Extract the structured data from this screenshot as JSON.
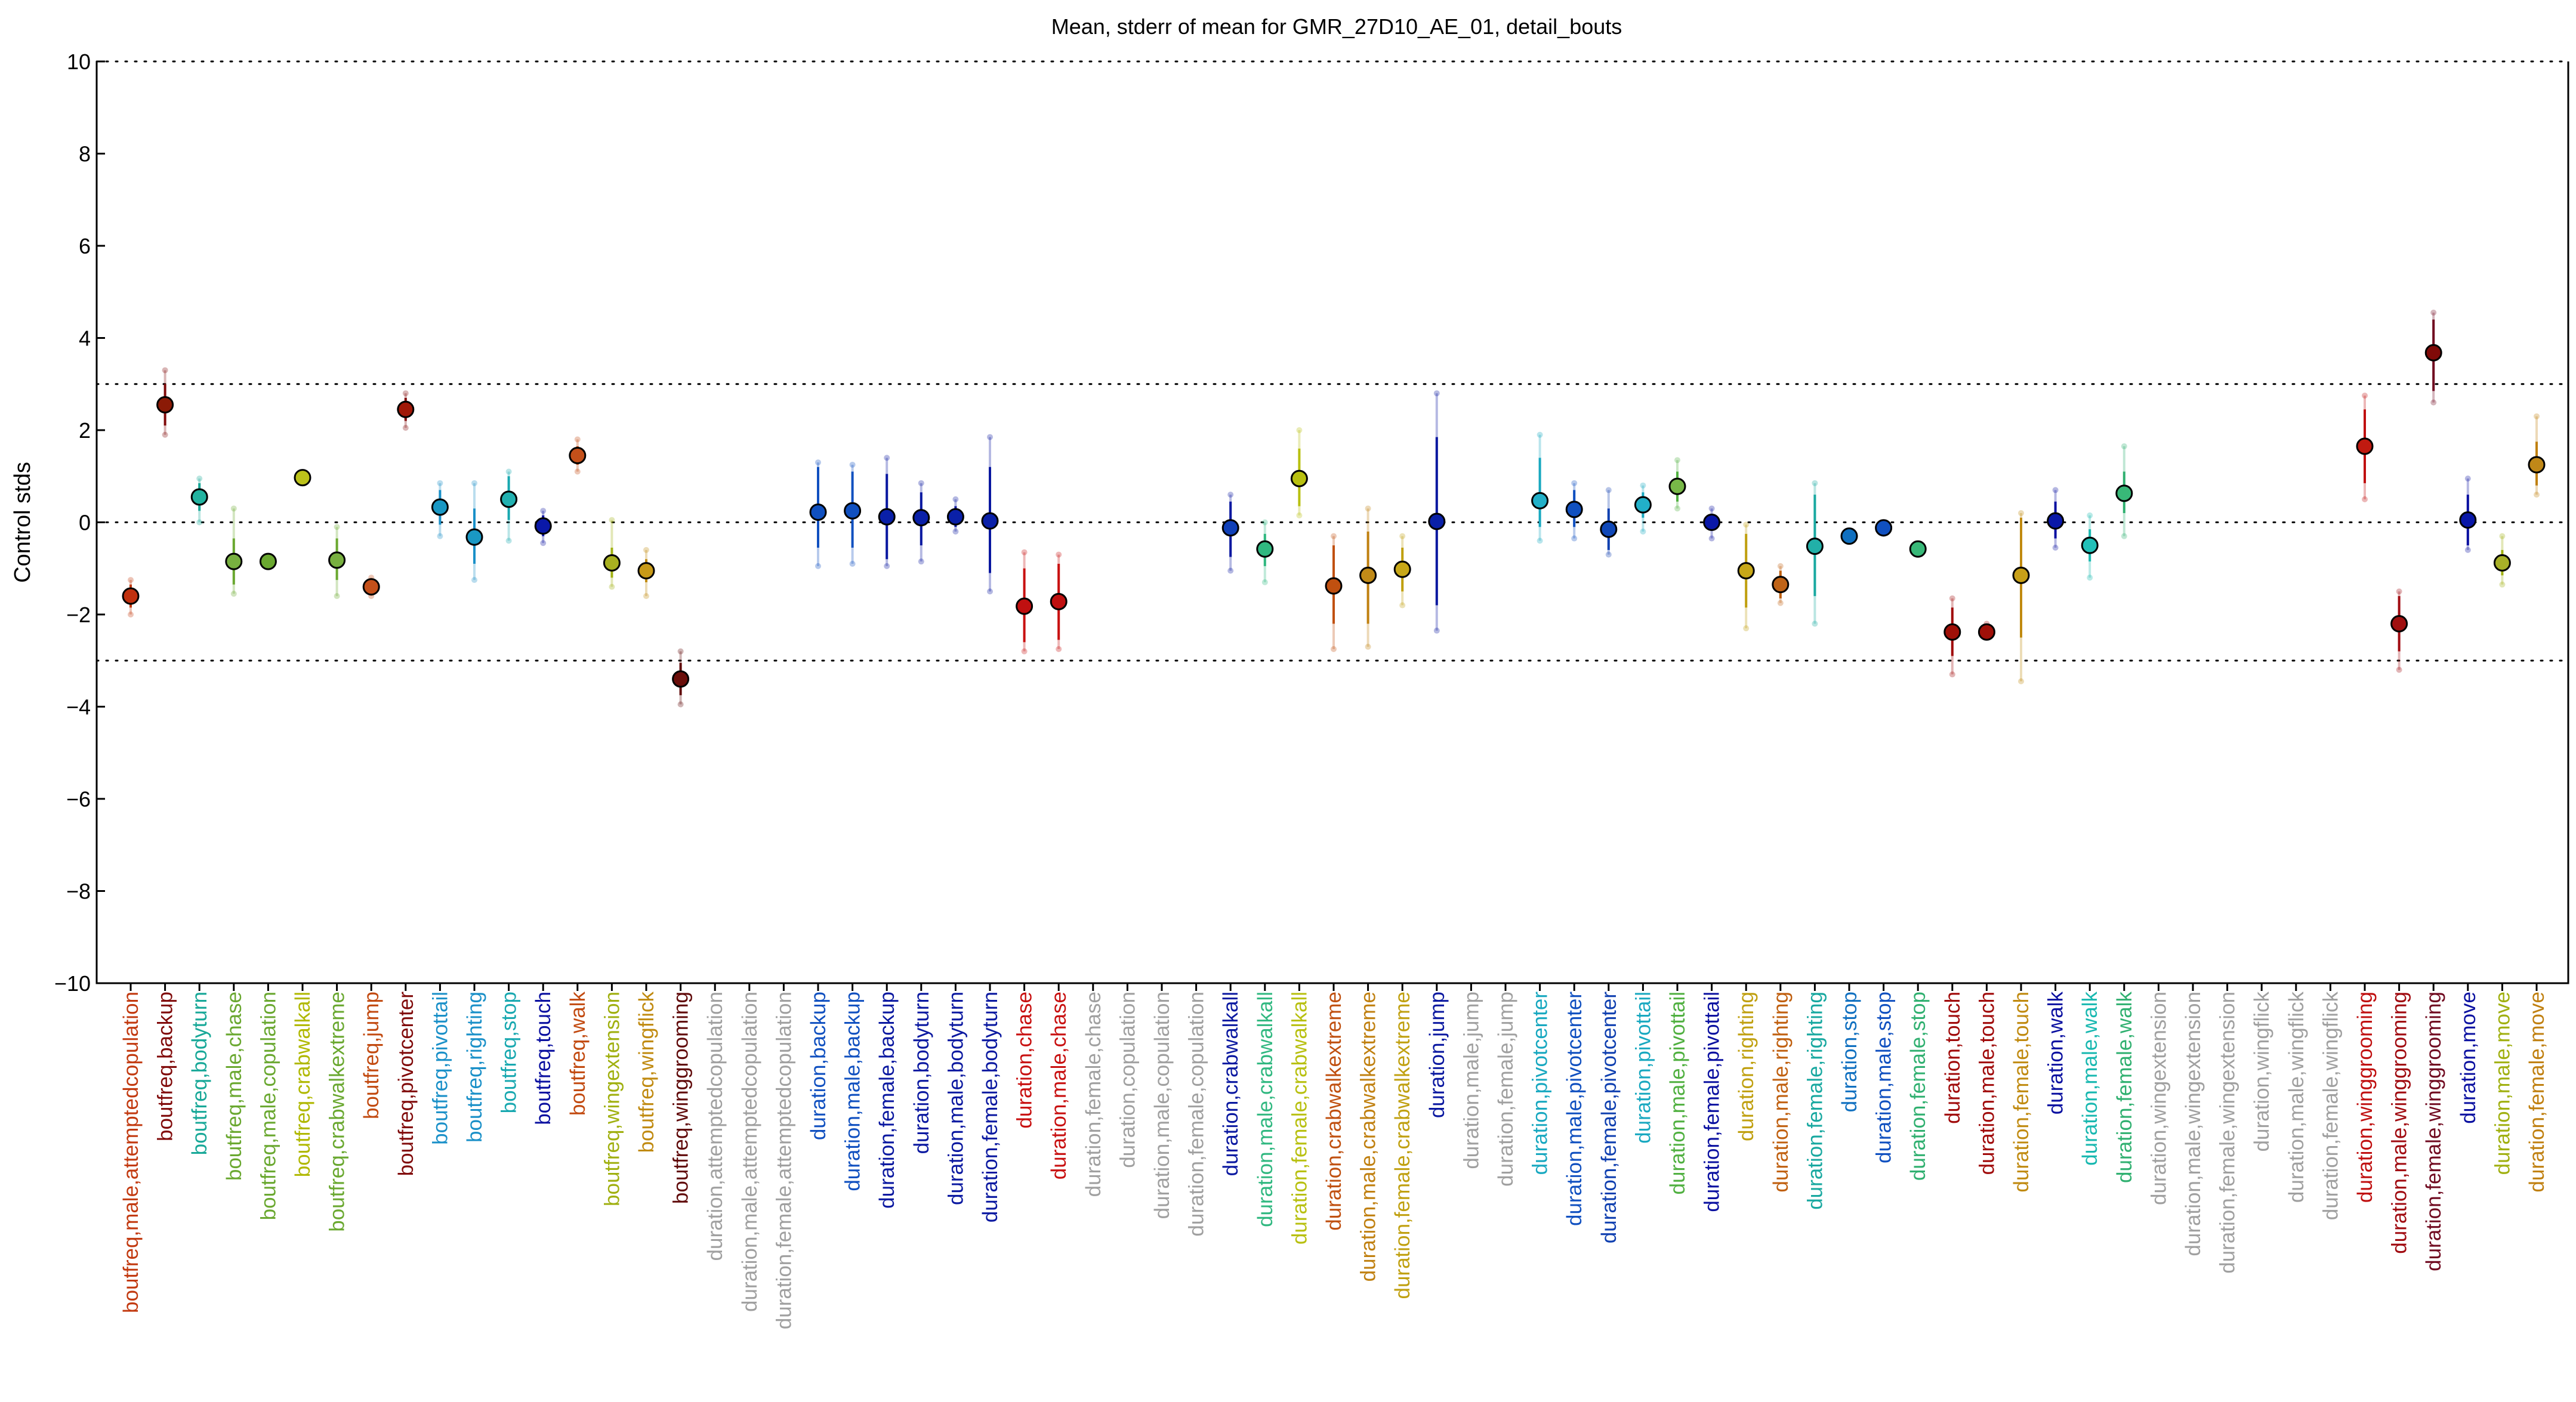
{
  "chart_data": {
    "type": "scatter",
    "title": "Mean, stderr of mean for GMR_27D10_AE_01, detail_bouts",
    "ylabel": "Control stds",
    "xlabel": "",
    "ylim": [
      -10,
      10
    ],
    "yticks": [
      -10,
      -8,
      -6,
      -4,
      -2,
      0,
      2,
      4,
      6,
      8,
      10
    ],
    "reference_lines": [
      -10,
      -3,
      0,
      3,
      10
    ],
    "grid": false,
    "categories": [
      {
        "label": "boutfreq,male,attemptedcopulation",
        "mean": -1.6,
        "se_low": -1.85,
        "se_high": -1.35,
        "min": -2.0,
        "max": -1.25,
        "color": "#c23a10",
        "point": "#c0300e"
      },
      {
        "label": "boutfreq,backup",
        "mean": 2.55,
        "se_low": 2.1,
        "se_high": 3.0,
        "min": 1.9,
        "max": 3.3,
        "color": "#800a0a",
        "point": "#8b1a06"
      },
      {
        "label": "boutfreq,bodyturn",
        "mean": 0.55,
        "se_low": 0.25,
        "se_high": 0.85,
        "min": 0.0,
        "max": 0.95,
        "color": "#18a898",
        "point": "#22b3a0"
      },
      {
        "label": "boutfreq,male,chase",
        "mean": -0.85,
        "se_low": -1.35,
        "se_high": -0.35,
        "min": -1.55,
        "max": 0.3,
        "color": "#6aa830",
        "point": "#78b040"
      },
      {
        "label": "boutfreq,male,copulation",
        "mean": -0.85,
        "se_low": -0.85,
        "se_high": -0.85,
        "min": -0.85,
        "max": -0.85,
        "color": "#6aa830",
        "point": "#6aa830"
      },
      {
        "label": "boutfreq,crabwalkall",
        "mean": 0.97,
        "se_low": 0.97,
        "se_high": 0.97,
        "min": 0.97,
        "max": 0.97,
        "color": "#b0b800",
        "point": "#bcc21a"
      },
      {
        "label": "boutfreq,crabwalkextreme",
        "mean": -0.82,
        "se_low": -1.25,
        "se_high": -0.35,
        "min": -1.6,
        "max": -0.1,
        "color": "#6aa830",
        "point": "#78b040"
      },
      {
        "label": "boutfreq,jump",
        "mean": -1.4,
        "se_low": -1.52,
        "se_high": -1.28,
        "min": -1.6,
        "max": -1.2,
        "color": "#c24a10",
        "point": "#c4501a"
      },
      {
        "label": "boutfreq,pivotcenter",
        "mean": 2.45,
        "se_low": 2.2,
        "se_high": 2.7,
        "min": 2.05,
        "max": 2.8,
        "color": "#800a0a",
        "point": "#a01808"
      },
      {
        "label": "boutfreq,pivottail",
        "mean": 0.33,
        "se_low": -0.05,
        "se_high": 0.7,
        "min": -0.3,
        "max": 0.85,
        "color": "#1a90c8",
        "point": "#1a98c4"
      },
      {
        "label": "boutfreq,righting",
        "mean": -0.32,
        "se_low": -0.9,
        "se_high": 0.3,
        "min": -1.25,
        "max": 0.85,
        "color": "#1a90c8",
        "point": "#1a98c4"
      },
      {
        "label": "boutfreq,stop",
        "mean": 0.5,
        "se_low": 0.05,
        "se_high": 1.0,
        "min": -0.4,
        "max": 1.1,
        "color": "#18a8b0",
        "point": "#22b0b0"
      },
      {
        "label": "boutfreq,touch",
        "mean": -0.08,
        "se_low": -0.3,
        "se_high": 0.15,
        "min": -0.45,
        "max": 0.25,
        "color": "#0a10a0",
        "point": "#0a18a8"
      },
      {
        "label": "boutfreq,walk",
        "mean": 1.45,
        "se_low": 1.25,
        "se_high": 1.65,
        "min": 1.1,
        "max": 1.8,
        "color": "#c24a10",
        "point": "#c4501a"
      },
      {
        "label": "boutfreq,wingextension",
        "mean": -0.88,
        "se_low": -1.2,
        "se_high": -0.55,
        "min": -1.4,
        "max": 0.05,
        "color": "#a0b010",
        "point": "#a8b020"
      },
      {
        "label": "boutfreq,wingflick",
        "mean": -1.05,
        "se_low": -1.3,
        "se_high": -0.8,
        "min": -1.6,
        "max": -0.6,
        "color": "#c08a10",
        "point": "#c89a18"
      },
      {
        "label": "boutfreq,winggrooming",
        "mean": -3.4,
        "se_low": -3.75,
        "se_high": -3.05,
        "min": -3.95,
        "max": -2.8,
        "color": "#600a0a",
        "point": "#6a0e0a"
      },
      {
        "label": "duration,attemptedcopulation",
        "mean": null,
        "color": "#a0a0a0"
      },
      {
        "label": "duration,male,attemptedcopulation",
        "mean": null,
        "color": "#a0a0a0"
      },
      {
        "label": "duration,female,attemptedcopulation",
        "mean": null,
        "color": "#a0a0a0"
      },
      {
        "label": "duration,backup",
        "mean": 0.22,
        "se_low": -0.55,
        "se_high": 1.2,
        "min": -0.95,
        "max": 1.3,
        "color": "#1050c0",
        "point": "#1050c0"
      },
      {
        "label": "duration,male,backup",
        "mean": 0.25,
        "se_low": -0.55,
        "se_high": 1.1,
        "min": -0.9,
        "max": 1.25,
        "color": "#1050c0",
        "point": "#1050c0"
      },
      {
        "label": "duration,female,backup",
        "mean": 0.12,
        "se_low": -0.8,
        "se_high": 1.05,
        "min": -0.95,
        "max": 1.4,
        "color": "#0a18a0",
        "point": "#0a20a8"
      },
      {
        "label": "duration,bodyturn",
        "mean": 0.1,
        "se_low": -0.5,
        "se_high": 0.65,
        "min": -0.85,
        "max": 0.85,
        "color": "#0a18a0",
        "point": "#0a20a8"
      },
      {
        "label": "duration,male,bodyturn",
        "mean": 0.12,
        "se_low": -0.1,
        "se_high": 0.35,
        "min": -0.2,
        "max": 0.5,
        "color": "#0a18a0",
        "point": "#0a20a8"
      },
      {
        "label": "duration,female,bodyturn",
        "mean": 0.03,
        "se_low": -1.1,
        "se_high": 1.2,
        "min": -1.5,
        "max": 1.85,
        "color": "#0a18a0",
        "point": "#0a20a8"
      },
      {
        "label": "duration,chase",
        "mean": -1.82,
        "se_low": -2.6,
        "se_high": -1.0,
        "min": -2.8,
        "max": -0.65,
        "color": "#c81010",
        "point": "#c01010"
      },
      {
        "label": "duration,male,chase",
        "mean": -1.72,
        "se_low": -2.55,
        "se_high": -0.9,
        "min": -2.75,
        "max": -0.7,
        "color": "#c81010",
        "point": "#c01010"
      },
      {
        "label": "duration,female,chase",
        "mean": null,
        "color": "#a0a0a0"
      },
      {
        "label": "duration,copulation",
        "mean": null,
        "color": "#a0a0a0"
      },
      {
        "label": "duration,male,copulation",
        "mean": null,
        "color": "#a0a0a0"
      },
      {
        "label": "duration,female,copulation",
        "mean": null,
        "color": "#a0a0a0"
      },
      {
        "label": "duration,crabwalkall",
        "mean": -0.12,
        "se_low": -0.75,
        "se_high": 0.45,
        "min": -1.05,
        "max": 0.6,
        "color": "#0a18a0",
        "point": "#1040b8"
      },
      {
        "label": "duration,male,crabwalkall",
        "mean": -0.58,
        "se_low": -0.95,
        "se_high": -0.25,
        "min": -1.3,
        "max": 0.0,
        "color": "#30b880",
        "point": "#30b880"
      },
      {
        "label": "duration,female,crabwalkall",
        "mean": 0.95,
        "se_low": 0.35,
        "se_high": 1.6,
        "min": 0.15,
        "max": 2.0,
        "color": "#b8c010",
        "point": "#b8c010"
      },
      {
        "label": "duration,crabwalkextreme",
        "mean": -1.38,
        "se_low": -2.2,
        "se_high": -0.5,
        "min": -2.75,
        "max": -0.3,
        "color": "#c05010",
        "point": "#c05010"
      },
      {
        "label": "duration,male,crabwalkextreme",
        "mean": -1.15,
        "se_low": -2.2,
        "se_high": -0.2,
        "min": -2.7,
        "max": 0.3,
        "color": "#c08010",
        "point": "#c08a18"
      },
      {
        "label": "duration,female,crabwalkextreme",
        "mean": -1.02,
        "se_low": -1.5,
        "se_high": -0.55,
        "min": -1.8,
        "max": -0.3,
        "color": "#c0a010",
        "point": "#c8a818"
      },
      {
        "label": "duration,jump",
        "mean": 0.02,
        "se_low": -1.8,
        "se_high": 1.85,
        "min": -2.35,
        "max": 2.8,
        "color": "#0a18a0",
        "point": "#0a20a8"
      },
      {
        "label": "duration,male,jump",
        "mean": null,
        "color": "#a0a0a0"
      },
      {
        "label": "duration,female,jump",
        "mean": null,
        "color": "#a0a0a0"
      },
      {
        "label": "duration,pivotcenter",
        "mean": 0.47,
        "se_low": -0.1,
        "se_high": 1.4,
        "min": -0.4,
        "max": 1.9,
        "color": "#18a8c0",
        "point": "#22b0c8"
      },
      {
        "label": "duration,male,pivotcenter",
        "mean": 0.28,
        "se_low": -0.1,
        "se_high": 0.7,
        "min": -0.35,
        "max": 0.85,
        "color": "#1050c0",
        "point": "#1050c0"
      },
      {
        "label": "duration,female,pivotcenter",
        "mean": -0.15,
        "se_low": -0.6,
        "se_high": 0.3,
        "min": -0.7,
        "max": 0.7,
        "color": "#1040b0",
        "point": "#1048b8"
      },
      {
        "label": "duration,pivottail",
        "mean": 0.38,
        "se_low": 0.1,
        "se_high": 0.65,
        "min": -0.2,
        "max": 0.8,
        "color": "#18a8c0",
        "point": "#22b0c8"
      },
      {
        "label": "duration,male,pivottail",
        "mean": 0.78,
        "se_low": 0.45,
        "se_high": 1.1,
        "min": 0.3,
        "max": 1.35,
        "color": "#50b040",
        "point": "#78b848"
      },
      {
        "label": "duration,female,pivottail",
        "mean": 0.0,
        "se_low": -0.15,
        "se_high": 0.15,
        "min": -0.35,
        "max": 0.3,
        "color": "#0a10a0",
        "point": "#0a18a8"
      },
      {
        "label": "duration,righting",
        "mean": -1.05,
        "se_low": -1.85,
        "se_high": -0.25,
        "min": -2.3,
        "max": -0.05,
        "color": "#c0a010",
        "point": "#c8a818"
      },
      {
        "label": "duration,male,righting",
        "mean": -1.35,
        "se_low": -1.65,
        "se_high": -1.05,
        "min": -1.75,
        "max": -0.95,
        "color": "#c06010",
        "point": "#c06418"
      },
      {
        "label": "duration,female,righting",
        "mean": -0.52,
        "se_low": -1.6,
        "se_high": 0.6,
        "min": -2.2,
        "max": 0.85,
        "color": "#18a8a0",
        "point": "#22b0a8"
      },
      {
        "label": "duration,stop",
        "mean": -0.3,
        "se_low": -0.3,
        "se_high": -0.3,
        "min": -0.3,
        "max": -0.3,
        "color": "#1070c0",
        "point": "#1070c0"
      },
      {
        "label": "duration,male,stop",
        "mean": -0.12,
        "se_low": -0.2,
        "se_high": -0.05,
        "min": -0.25,
        "max": 0.0,
        "color": "#1050c0",
        "point": "#1050c0"
      },
      {
        "label": "duration,female,stop",
        "mean": -0.58,
        "se_low": -0.58,
        "se_high": -0.58,
        "min": -0.58,
        "max": -0.58,
        "color": "#30b070",
        "point": "#38b878"
      },
      {
        "label": "duration,touch",
        "mean": -2.38,
        "se_low": -2.9,
        "se_high": -1.85,
        "min": -3.3,
        "max": -1.65,
        "color": "#a00a0a",
        "point": "#a01008"
      },
      {
        "label": "duration,male,touch",
        "mean": -2.38,
        "se_low": -2.45,
        "se_high": -2.3,
        "min": -2.5,
        "max": -2.2,
        "color": "#a00a0a",
        "point": "#a01008"
      },
      {
        "label": "duration,female,touch",
        "mean": -1.15,
        "se_low": -2.5,
        "se_high": 0.1,
        "min": -3.45,
        "max": 0.2,
        "color": "#c08a10",
        "point": "#c8a018"
      },
      {
        "label": "duration,walk",
        "mean": 0.03,
        "se_low": -0.35,
        "se_high": 0.45,
        "min": -0.55,
        "max": 0.7,
        "color": "#0a10a0",
        "point": "#0a18a8"
      },
      {
        "label": "duration,male,walk",
        "mean": -0.5,
        "se_low": -0.85,
        "se_high": -0.15,
        "min": -1.2,
        "max": 0.15,
        "color": "#18b8b0",
        "point": "#22c0b8"
      },
      {
        "label": "duration,female,walk",
        "mean": 0.63,
        "se_low": 0.2,
        "se_high": 1.1,
        "min": -0.3,
        "max": 1.65,
        "color": "#30b070",
        "point": "#38b878"
      },
      {
        "label": "duration,wingextension",
        "mean": null,
        "color": "#a0a0a0"
      },
      {
        "label": "duration,male,wingextension",
        "mean": null,
        "color": "#a0a0a0"
      },
      {
        "label": "duration,female,wingextension",
        "mean": null,
        "color": "#a0a0a0"
      },
      {
        "label": "duration,wingflick",
        "mean": null,
        "color": "#a0a0a0"
      },
      {
        "label": "duration,male,wingflick",
        "mean": null,
        "color": "#a0a0a0"
      },
      {
        "label": "duration,female,wingflick",
        "mean": null,
        "color": "#a0a0a0"
      },
      {
        "label": "duration,winggrooming",
        "mean": 1.65,
        "se_low": 0.85,
        "se_high": 2.45,
        "min": 0.5,
        "max": 2.75,
        "color": "#c01010",
        "point": "#c01a10"
      },
      {
        "label": "duration,male,winggrooming",
        "mean": -2.2,
        "se_low": -2.8,
        "se_high": -1.6,
        "min": -3.2,
        "max": -1.5,
        "color": "#a00a10",
        "point": "#a01010"
      },
      {
        "label": "duration,female,winggrooming",
        "mean": 3.68,
        "se_low": 2.85,
        "se_high": 4.4,
        "min": 2.6,
        "max": 4.55,
        "color": "#700a20",
        "point": "#800a08"
      },
      {
        "label": "duration,move",
        "mean": 0.05,
        "se_low": -0.5,
        "se_high": 0.6,
        "min": -0.6,
        "max": 0.95,
        "color": "#0a10a0",
        "point": "#0a18a8"
      },
      {
        "label": "duration,male,move",
        "mean": -0.88,
        "se_low": -1.15,
        "se_high": -0.6,
        "min": -1.35,
        "max": -0.3,
        "color": "#a0b010",
        "point": "#a8b028"
      },
      {
        "label": "duration,female,move",
        "mean": 1.25,
        "se_low": 0.8,
        "se_high": 1.75,
        "min": 0.6,
        "max": 2.3,
        "color": "#c08010",
        "point": "#c08818"
      }
    ]
  }
}
